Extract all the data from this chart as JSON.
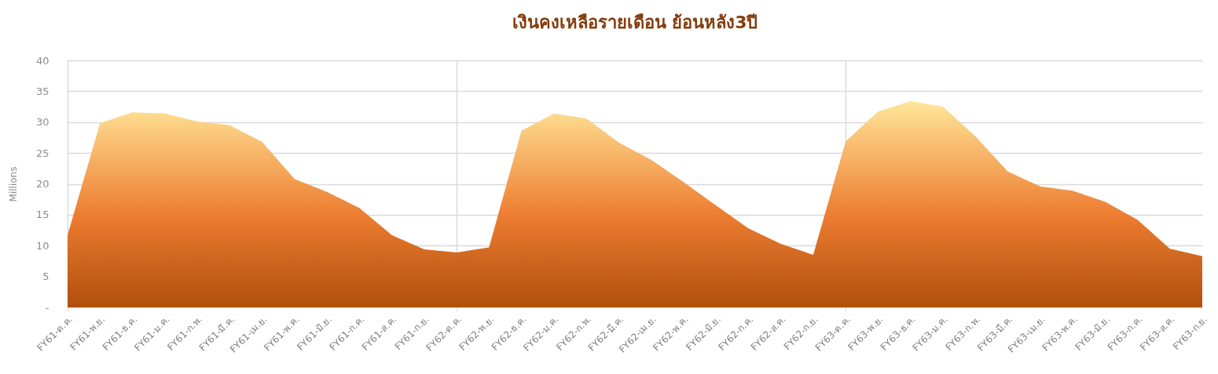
{
  "chart_data": {
    "type": "area",
    "title": "เงินคงเหลือรายเดือน ย้อนหลัง3ปี",
    "ylabel": "Millions",
    "categories": [
      "FY61-ต.ค.",
      "FY61-พ.ย.",
      "FY61-ธ.ค.",
      "FY61-ม.ค.",
      "FY61-ก.พ.",
      "FY61-มี.ค.",
      "FY61-เม.ย.",
      "FY61-พ.ค.",
      "FY61-มิ.ย.",
      "FY61-ก.ค.",
      "FY61-ส.ค.",
      "FY61-ก.ย.",
      "FY62-ต.ค.",
      "FY62-พ.ย.",
      "FY62-ธ.ค.",
      "FY62-ม.ค.",
      "FY62-ก.พ.",
      "FY62-มี.ค.",
      "FY62-เม.ย.",
      "FY62-พ.ค.",
      "FY62-มิ.ย.",
      "FY62-ก.ค.",
      "FY62-ส.ค.",
      "FY62-ก.ย.",
      "FY63-ต.ค.",
      "FY63-พ.ย.",
      "FY63-ธ.ค.",
      "FY63-ม.ค.",
      "FY63-ก.พ.",
      "FY63-มี.ค.",
      "FY63-เม.ย.",
      "FY63-พ.ค.",
      "FY63-มิ.ย.",
      "FY63-ก.ค.",
      "FY63-ส.ค.",
      "FY63-ก.ย."
    ],
    "series": [
      {
        "color": "#ed7d31",
        "values": [
          11.7,
          29.8,
          31.6,
          31.4,
          30.1,
          29.5,
          26.8,
          20.8,
          18.7,
          16.1,
          11.7,
          9.4,
          8.9,
          9.7,
          28.6,
          31.4,
          30.6,
          26.7,
          23.9,
          20.3,
          16.5,
          12.8,
          10.3,
          8.5,
          26.9,
          31.7,
          33.4,
          32.5,
          27.7,
          22.0,
          19.6,
          18.9,
          17.1,
          14.2,
          9.5,
          8.3
        ]
      }
    ],
    "ylim": [
      0,
      40
    ],
    "yticks": [
      {
        "value": 0,
        "label": "-"
      },
      5,
      10,
      15,
      20,
      25,
      30,
      35,
      40
    ],
    "grid": true
  }
}
